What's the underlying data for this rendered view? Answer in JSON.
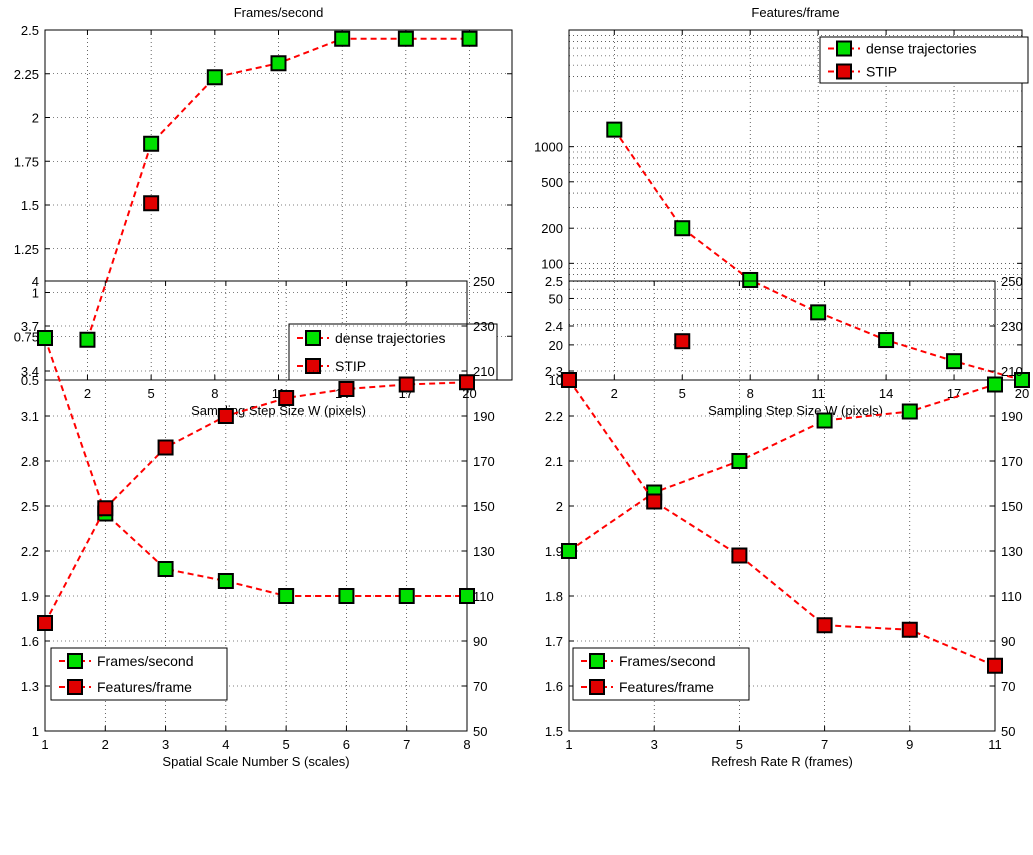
{
  "colors": {
    "green": "#00e000",
    "red": "#e00000",
    "line": "#ff0000"
  },
  "chart_data": [
    {
      "type": "line",
      "title": "Frames/second",
      "xlabel": "Sampling Step Size W (pixels)",
      "ylabel": "",
      "xticks": [
        "2",
        "5",
        "8",
        "11",
        "14",
        "17",
        "20"
      ],
      "xlim": [
        0,
        22
      ],
      "yticks": [
        "0.5",
        "0.75",
        "1",
        "1.25",
        "1.5",
        "1.75",
        "2",
        "2.25",
        "2.5"
      ],
      "ylim": [
        0.5,
        2.5
      ],
      "grid": true,
      "legend_position": "bottom-right",
      "series": [
        {
          "name": "dense trajectories",
          "color": "green",
          "line": true,
          "x": [
            2,
            5,
            8,
            11,
            14,
            17,
            20
          ],
          "y": [
            0.73,
            1.85,
            2.23,
            2.31,
            2.45,
            2.45,
            2.45
          ]
        },
        {
          "name": "STIP",
          "color": "red",
          "line": false,
          "x": [
            5
          ],
          "y": [
            1.51
          ]
        }
      ]
    },
    {
      "type": "line",
      "title": "Features/frame",
      "xlabel": "Sampling Step Size W (pixels)",
      "ylabel": "",
      "xticks": [
        "2",
        "5",
        "8",
        "11",
        "14",
        "17",
        "20"
      ],
      "xlim": [
        0,
        20
      ],
      "yscale": "log",
      "yticks": [
        "10",
        "20",
        "50",
        "100",
        "200",
        "500",
        "1000"
      ],
      "ylim": [
        10,
        10000
      ],
      "grid": true,
      "legend_position": "top-right",
      "series": [
        {
          "name": "dense trajectories",
          "color": "green",
          "line": true,
          "x": [
            2,
            5,
            8,
            11,
            14,
            17,
            20
          ],
          "y": [
            1400,
            200,
            72,
            38,
            22,
            14.5,
            10
          ]
        },
        {
          "name": "STIP",
          "color": "red",
          "line": false,
          "x": [
            5
          ],
          "y": [
            21.5
          ]
        }
      ]
    },
    {
      "type": "line",
      "title": "",
      "xlabel": "Spatial Scale Number S (scales)",
      "ylabel": "",
      "xticks": [
        "1",
        "2",
        "3",
        "4",
        "5",
        "6",
        "7",
        "8"
      ],
      "xlim": [
        1,
        8
      ],
      "yticks": [
        "1",
        "1.3",
        "1.6",
        "1.9",
        "2.2",
        "2.5",
        "2.8",
        "3.1",
        "3.4",
        "3.7",
        "4"
      ],
      "ylim": [
        1,
        4
      ],
      "y2ticks": [
        "50",
        "70",
        "90",
        "110",
        "130",
        "150",
        "170",
        "190",
        "210",
        "230",
        "250"
      ],
      "y2lim": [
        50,
        250
      ],
      "grid": true,
      "legend_position": "bottom-left",
      "series": [
        {
          "name": "Frames/second",
          "color": "green",
          "line": true,
          "axis": "left",
          "x": [
            1,
            2,
            3,
            4,
            5,
            6,
            7,
            8
          ],
          "y": [
            3.62,
            2.45,
            2.08,
            2.0,
            1.9,
            1.9,
            1.9,
            1.9
          ]
        },
        {
          "name": "Features/frame",
          "color": "red",
          "line": true,
          "axis": "right",
          "x": [
            1,
            2,
            3,
            4,
            5,
            6,
            7,
            8
          ],
          "y": [
            98,
            149,
            176,
            190,
            198,
            202,
            204,
            205
          ]
        }
      ]
    },
    {
      "type": "line",
      "title": "",
      "xlabel": "Refresh Rate R (frames)",
      "ylabel": "",
      "xticks": [
        "1",
        "3",
        "5",
        "7",
        "9",
        "11"
      ],
      "xlim": [
        1,
        11
      ],
      "yticks": [
        "1.5",
        "1.6",
        "1.7",
        "1.8",
        "1.9",
        "2",
        "2.1",
        "2.2",
        "2.3",
        "2.4",
        "2.5"
      ],
      "ylim": [
        1.5,
        2.5
      ],
      "y2ticks": [
        "50",
        "70",
        "90",
        "110",
        "130",
        "150",
        "170",
        "190",
        "210",
        "230",
        "250"
      ],
      "y2lim": [
        50,
        250
      ],
      "grid": true,
      "legend_position": "bottom-left",
      "series": [
        {
          "name": "Frames/second",
          "color": "green",
          "line": true,
          "axis": "left",
          "x": [
            1,
            3,
            5,
            7,
            9,
            11
          ],
          "y": [
            1.9,
            2.03,
            2.1,
            2.19,
            2.21,
            2.27
          ]
        },
        {
          "name": "Features/frame",
          "color": "red",
          "line": true,
          "axis": "right",
          "x": [
            1,
            3,
            5,
            7,
            9,
            11
          ],
          "y": [
            206,
            152,
            128,
            97,
            95,
            79
          ]
        }
      ]
    }
  ]
}
